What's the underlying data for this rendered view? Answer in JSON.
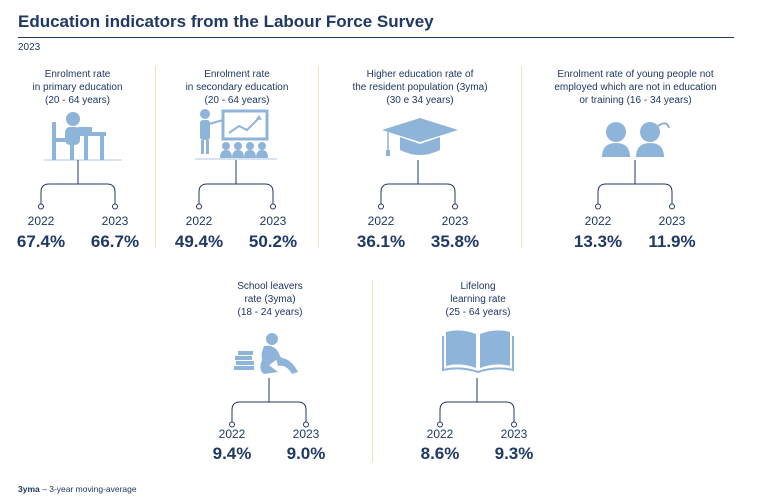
{
  "title": "Education indicators from the Labour Force Survey",
  "period": "2023",
  "indicators": [
    {
      "label_lines": [
        "Enrolment rate",
        "in primary education",
        "(20 - 64 years)"
      ],
      "icon": "student-at-desk-icon",
      "years": [
        "2022",
        "2023"
      ],
      "values": [
        "67.4%",
        "66.7%"
      ]
    },
    {
      "label_lines": [
        "Enrolment rate",
        "in secondary education",
        "(20 - 64 years)"
      ],
      "icon": "teacher-with-class-icon",
      "years": [
        "2022",
        "2023"
      ],
      "values": [
        "49.4%",
        "50.2%"
      ]
    },
    {
      "label_lines": [
        "Higher education rate of",
        "the resident population (3yma)",
        "(30 e 34 years)"
      ],
      "icon": "graduation-cap-icon",
      "years": [
        "2022",
        "2023"
      ],
      "values": [
        "36.1%",
        "35.8%"
      ]
    },
    {
      "label_lines": [
        "Enrolment rate of young people not",
        "employed which are not in education",
        "or training (16 - 34 years)"
      ],
      "icon": "young-people-icon",
      "years": [
        "2022",
        "2023"
      ],
      "values": [
        "13.3%",
        "11.9%"
      ]
    },
    {
      "label_lines": [
        "School leavers",
        "rate (3yma)",
        "(18 - 24 years)"
      ],
      "icon": "seated-person-with-books-icon",
      "years": [
        "2022",
        "2023"
      ],
      "values": [
        "9.4%",
        "9.0%"
      ]
    },
    {
      "label_lines": [
        "Lifelong",
        "learning rate",
        "(25 - 64 years)"
      ],
      "icon": "open-book-icon",
      "years": [
        "2022",
        "2023"
      ],
      "values": [
        "8.6%",
        "9.3%"
      ]
    }
  ],
  "footnote": {
    "abbr": "3yma",
    "text": "– 3-year moving-average"
  },
  "colors": {
    "title": "#1f3864",
    "icon": "#8fb4d9",
    "separator": "#f2e3b8"
  }
}
